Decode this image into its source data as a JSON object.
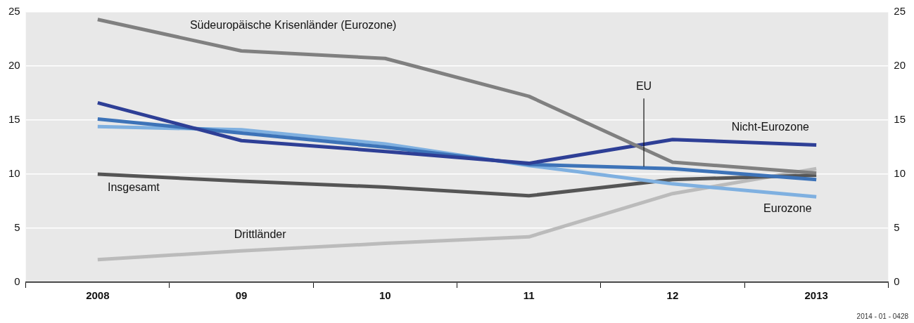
{
  "chart_data": {
    "type": "line",
    "categories": [
      "2008",
      "09",
      "10",
      "11",
      "12",
      "2013"
    ],
    "series": [
      {
        "name": "Südeuropäische Krisenländer (Eurozone)",
        "color": "#808080",
        "values": [
          24.3,
          21.4,
          20.7,
          17.2,
          11.1,
          10.1
        ]
      },
      {
        "name": "Nicht-Eurozone",
        "color": "#2e3f96",
        "values": [
          16.6,
          13.1,
          12.1,
          11.0,
          13.2,
          12.7
        ]
      },
      {
        "name": "EU",
        "color": "#3d73b8",
        "values": [
          15.1,
          13.8,
          12.5,
          10.9,
          10.5,
          9.5
        ]
      },
      {
        "name": "Eurozone",
        "color": "#7fb0e0",
        "values": [
          14.4,
          14.1,
          12.8,
          10.8,
          9.1,
          7.9
        ]
      },
      {
        "name": "Insgesamt",
        "color": "#555555",
        "values": [
          10.0,
          9.35,
          8.8,
          8.0,
          9.5,
          9.9
        ]
      },
      {
        "name": "Drittländer",
        "color": "#bbbbbb",
        "values": [
          2.1,
          2.9,
          3.6,
          4.2,
          8.2,
          10.5
        ]
      }
    ],
    "ylim": [
      0,
      25
    ],
    "yticks": [
      0,
      5,
      10,
      15,
      20,
      25
    ],
    "y2lim": [
      0,
      25
    ],
    "y2ticks": [
      0,
      5,
      10,
      15,
      20,
      25
    ],
    "grid": "y",
    "legend": false,
    "marker": "none",
    "line_style": "solid",
    "annotations": [
      "2014 - 01 - 0428"
    ]
  }
}
